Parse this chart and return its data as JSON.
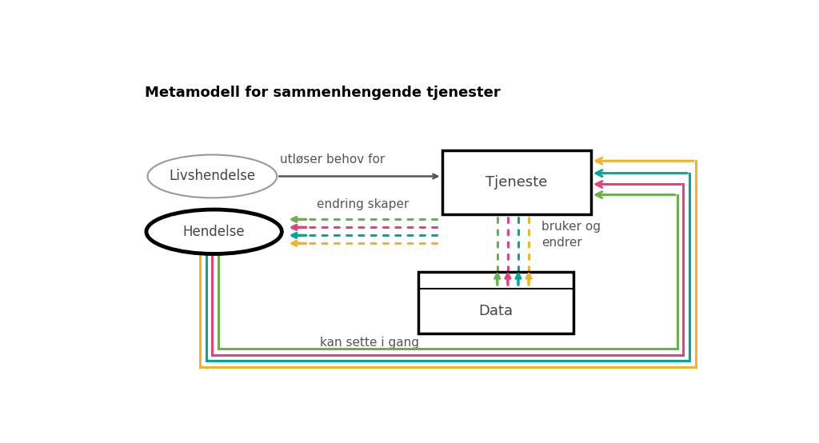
{
  "title": "Metamodell for sammenhengende tjenester",
  "bg_color": "#ffffff",
  "colors": {
    "green": "#6ab04c",
    "pink": "#e8417a",
    "teal": "#00a896",
    "yellow": "#f0b429",
    "dark_gray": "#555555"
  },
  "livshendelse_label": "Livshendelse",
  "hendelse_label": "Hendelse",
  "tjeneste_label": "Tjeneste",
  "data_label": "Data",
  "arrow_label_utloser": "utløser behov for",
  "arrow_label_endring": "endring skaper",
  "arrow_label_bruker": "bruker og\nendrer",
  "arrow_label_kan": "kan sette i gang"
}
